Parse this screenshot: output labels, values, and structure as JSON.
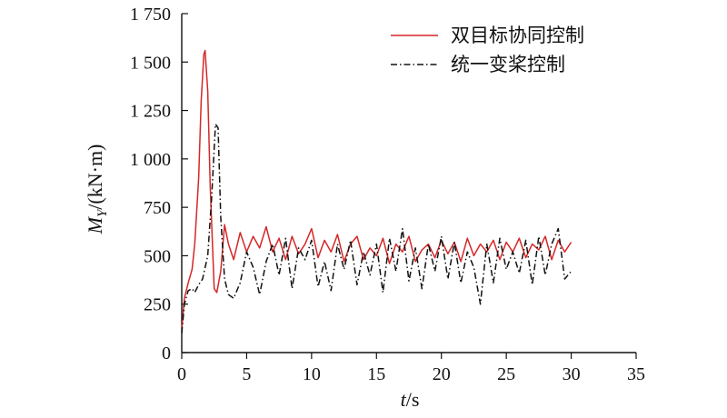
{
  "chart_data": {
    "type": "line",
    "xlabel": {
      "main": "t",
      "unit": "/s"
    },
    "ylabel": {
      "main": "M",
      "sub": "Y",
      "unit": "/(kN·m)"
    },
    "xlim": [
      0,
      35
    ],
    "ylim": [
      0,
      1750
    ],
    "xticks": [
      0,
      5,
      10,
      15,
      20,
      25,
      30,
      35
    ],
    "xtick_labels": [
      "0",
      "5",
      "10",
      "15",
      "20",
      "25",
      "30",
      "35"
    ],
    "yticks": [
      0,
      250,
      500,
      750,
      1000,
      1250,
      1500,
      1750
    ],
    "ytick_labels": [
      "0",
      "250",
      "500",
      "750",
      "1 000",
      "1 250",
      "1 500",
      "1 750"
    ],
    "grid": false,
    "legend_position": "top-right",
    "series": [
      {
        "name": "双目标协同控制",
        "color": "#d62728",
        "style": "solid",
        "x": [
          0,
          0.2,
          0.5,
          0.8,
          1.0,
          1.3,
          1.5,
          1.7,
          1.8,
          2.0,
          2.2,
          2.5,
          2.7,
          3.0,
          3.3,
          3.6,
          4.0,
          4.5,
          5.0,
          5.5,
          6.0,
          6.5,
          7.0,
          7.5,
          8.0,
          8.5,
          9.0,
          9.5,
          10.0,
          10.5,
          11.0,
          11.5,
          12.0,
          12.5,
          13.0,
          13.5,
          14.0,
          14.5,
          15.0,
          15.5,
          16.0,
          16.5,
          17.0,
          17.5,
          18.0,
          18.5,
          19.0,
          19.5,
          20.0,
          20.5,
          21.0,
          21.5,
          22.0,
          22.5,
          23.0,
          23.5,
          24.0,
          24.5,
          25.0,
          25.5,
          26.0,
          26.5,
          27.0,
          27.5,
          28.0,
          28.5,
          29.0,
          29.5,
          30.0
        ],
        "y": [
          120,
          280,
          360,
          430,
          560,
          900,
          1300,
          1540,
          1560,
          1350,
          850,
          330,
          310,
          420,
          660,
          560,
          480,
          620,
          520,
          600,
          540,
          650,
          520,
          590,
          480,
          600,
          510,
          560,
          640,
          490,
          580,
          520,
          610,
          470,
          560,
          600,
          480,
          540,
          500,
          590,
          460,
          560,
          520,
          600,
          470,
          530,
          560,
          490,
          580,
          510,
          570,
          470,
          590,
          500,
          560,
          520,
          580,
          480,
          570,
          520,
          590,
          490,
          560,
          530,
          600,
          480,
          580,
          520,
          570
        ]
      },
      {
        "name": "统一变桨控制",
        "color": "#111111",
        "style": "dashdot",
        "x": [
          0,
          0.2,
          0.5,
          0.8,
          1.0,
          1.3,
          1.6,
          2.0,
          2.3,
          2.6,
          2.8,
          3.0,
          3.3,
          3.6,
          4.0,
          4.5,
          5.0,
          5.5,
          6.0,
          6.5,
          7.0,
          7.5,
          8.0,
          8.5,
          9.0,
          9.5,
          10.0,
          10.5,
          11.0,
          11.5,
          12.0,
          12.5,
          13.0,
          13.5,
          14.0,
          14.5,
          15.0,
          15.5,
          16.0,
          16.5,
          17.0,
          17.5,
          18.0,
          18.5,
          19.0,
          19.5,
          20.0,
          20.5,
          21.0,
          21.5,
          22.0,
          22.5,
          23.0,
          23.5,
          24.0,
          24.5,
          25.0,
          25.5,
          26.0,
          26.5,
          27.0,
          27.5,
          28.0,
          28.5,
          29.0,
          29.5,
          30.0
        ],
        "y": [
          100,
          250,
          320,
          330,
          310,
          350,
          380,
          500,
          800,
          1180,
          1160,
          700,
          380,
          300,
          280,
          360,
          520,
          440,
          300,
          470,
          560,
          400,
          590,
          330,
          540,
          480,
          580,
          340,
          470,
          320,
          560,
          430,
          580,
          350,
          520,
          400,
          560,
          310,
          590,
          420,
          640,
          370,
          540,
          330,
          560,
          420,
          600,
          380,
          570,
          360,
          520,
          440,
          250,
          560,
          360,
          590,
          430,
          520,
          410,
          580,
          350,
          600,
          400,
          560,
          640,
          380,
          420
        ]
      }
    ]
  }
}
